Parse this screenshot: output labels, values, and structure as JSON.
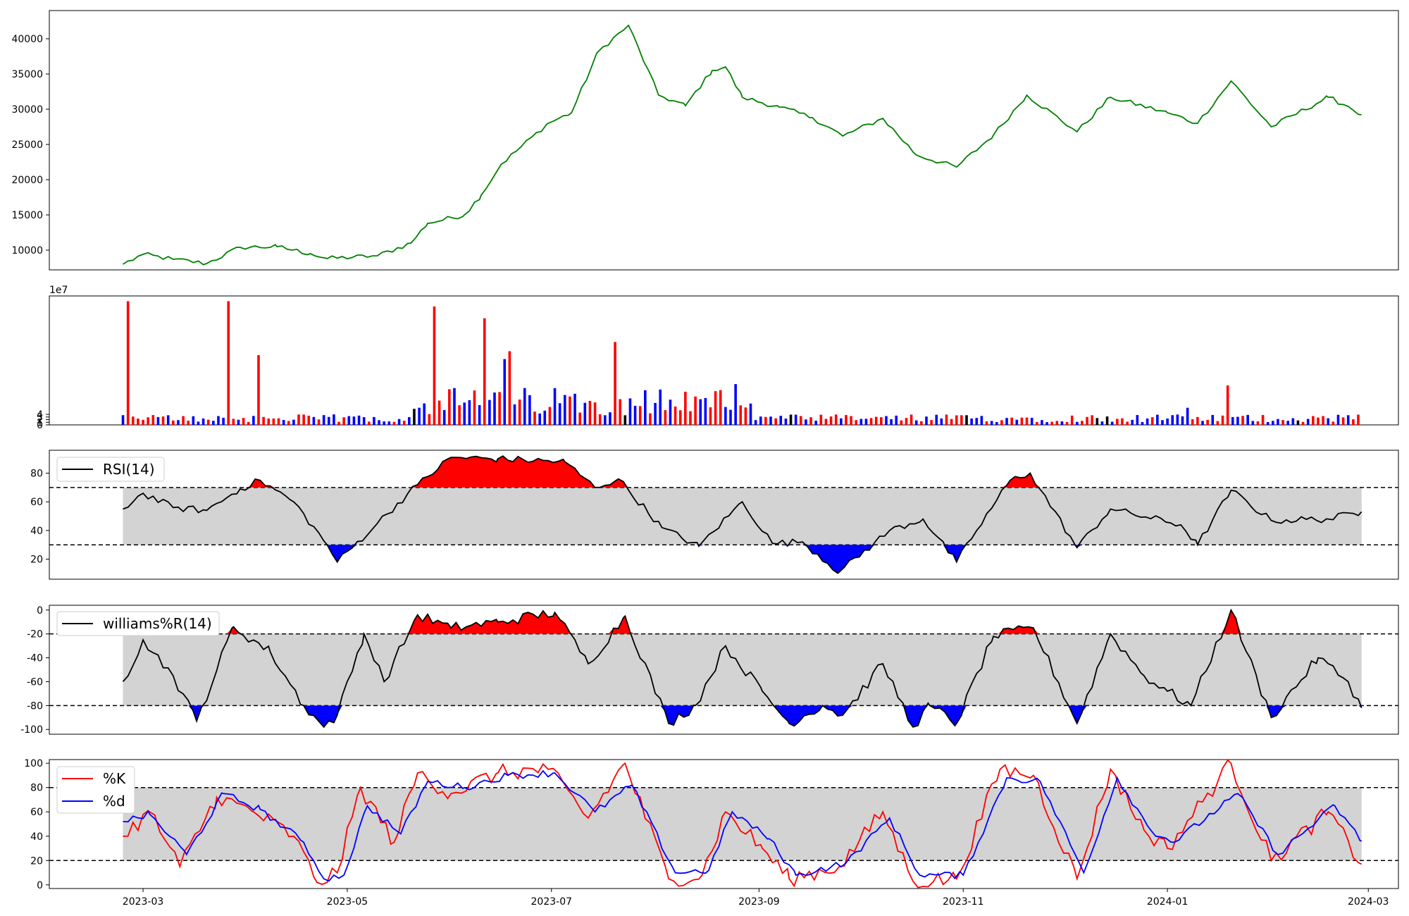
{
  "colors": {
    "price": "#008000",
    "up": "#ff0000",
    "down": "#0000ff",
    "neutral": "#000000",
    "band": "#d3d3d3",
    "k": "#ff0000",
    "d": "#0000ff",
    "line": "#000000"
  },
  "chart_data": [
    {
      "type": "line",
      "panel": "price",
      "x_range": [
        "2023-02-01",
        "2024-03-10"
      ],
      "ylim": [
        7200,
        44000
      ],
      "y_ticks": [
        10000,
        15000,
        20000,
        25000,
        30000,
        35000,
        40000
      ],
      "anchors": [
        [
          "2023-02-23",
          8000
        ],
        [
          "2023-03-01",
          9400
        ],
        [
          "2023-03-10",
          8700
        ],
        [
          "2023-03-20",
          8100
        ],
        [
          "2023-03-30",
          10400
        ],
        [
          "2023-04-10",
          10500
        ],
        [
          "2023-04-20",
          9500
        ],
        [
          "2023-04-25",
          8800
        ],
        [
          "2023-05-10",
          9200
        ],
        [
          "2023-05-20",
          11000
        ],
        [
          "2023-05-25",
          13800
        ],
        [
          "2023-06-05",
          15000
        ],
        [
          "2023-06-10",
          17800
        ],
        [
          "2023-06-16",
          22200
        ],
        [
          "2023-06-30",
          28000
        ],
        [
          "2023-07-07",
          29500
        ],
        [
          "2023-07-15",
          38200
        ],
        [
          "2023-07-24",
          41900
        ],
        [
          "2023-08-02",
          32000
        ],
        [
          "2023-08-10",
          30500
        ],
        [
          "2023-08-18",
          35500
        ],
        [
          "2023-08-22",
          36000
        ],
        [
          "2023-08-27",
          31700
        ],
        [
          "2023-09-07",
          30300
        ],
        [
          "2023-09-17",
          28800
        ],
        [
          "2023-09-26",
          26200
        ],
        [
          "2023-10-08",
          28700
        ],
        [
          "2023-10-18",
          23500
        ],
        [
          "2023-10-30",
          21800
        ],
        [
          "2023-11-10",
          26300
        ],
        [
          "2023-11-20",
          32000
        ],
        [
          "2023-12-05",
          26800
        ],
        [
          "2023-12-15",
          31700
        ],
        [
          "2024-01-01",
          29500
        ],
        [
          "2024-01-10",
          28000
        ],
        [
          "2024-01-20",
          34000
        ],
        [
          "2024-02-01",
          27500
        ],
        [
          "2024-02-18",
          31700
        ],
        [
          "2024-02-24",
          30400
        ],
        [
          "2024-02-28",
          29200
        ]
      ]
    },
    {
      "type": "bar",
      "panel": "volume",
      "scale_label": "1e7",
      "ylim": [
        0,
        49
      ],
      "y_ticks": [
        0,
        1,
        2,
        3,
        4
      ],
      "spikes": [
        [
          "2023-02-26",
          47,
          "up"
        ],
        [
          "2023-03-28",
          47,
          "up"
        ],
        [
          "2023-04-05",
          26.5,
          "up"
        ],
        [
          "2023-05-28",
          45,
          "up"
        ],
        [
          "2023-06-12",
          40.5,
          "up"
        ],
        [
          "2023-06-20",
          28,
          "up"
        ],
        [
          "2023-06-18",
          25,
          "down"
        ],
        [
          "2023-07-21",
          31.5,
          "up"
        ],
        [
          "2023-08-26",
          15.5,
          "down"
        ],
        [
          "2024-01-20",
          15,
          "up"
        ],
        [
          "2024-01-08",
          6.5,
          "down"
        ]
      ]
    },
    {
      "type": "line",
      "panel": "rsi",
      "legend": "RSI(14)",
      "ylim": [
        6,
        96
      ],
      "y_ticks": [
        20,
        40,
        60,
        80
      ],
      "bands": [
        30,
        70
      ],
      "anchors": [
        [
          "2023-02-23",
          55
        ],
        [
          "2023-03-01",
          66
        ],
        [
          "2023-03-10",
          56
        ],
        [
          "2023-03-20",
          54
        ],
        [
          "2023-03-30",
          69
        ],
        [
          "2023-04-05",
          75
        ],
        [
          "2023-04-15",
          60
        ],
        [
          "2023-04-25",
          30
        ],
        [
          "2023-04-28",
          18
        ],
        [
          "2023-05-10",
          45
        ],
        [
          "2023-05-22",
          72
        ],
        [
          "2023-06-01",
          91
        ],
        [
          "2023-06-15",
          90
        ],
        [
          "2023-07-05",
          88
        ],
        [
          "2023-07-14",
          70
        ],
        [
          "2023-07-21",
          76
        ],
        [
          "2023-08-03",
          42
        ],
        [
          "2023-08-14",
          29
        ],
        [
          "2023-08-27",
          60
        ],
        [
          "2023-09-05",
          31
        ],
        [
          "2023-09-14",
          32
        ],
        [
          "2023-09-25",
          11
        ],
        [
          "2023-10-10",
          40
        ],
        [
          "2023-10-20",
          48
        ],
        [
          "2023-10-30",
          18
        ],
        [
          "2023-11-05",
          40
        ],
        [
          "2023-11-15",
          75
        ],
        [
          "2023-11-21",
          80
        ],
        [
          "2023-12-05",
          28
        ],
        [
          "2023-12-15",
          55
        ],
        [
          "2024-01-05",
          44
        ],
        [
          "2024-01-10",
          30
        ],
        [
          "2024-01-20",
          68
        ],
        [
          "2024-02-01",
          47
        ],
        [
          "2024-02-18",
          48
        ],
        [
          "2024-02-28",
          53
        ]
      ]
    },
    {
      "type": "line",
      "panel": "williams",
      "legend": "williams%R(14)",
      "ylim": [
        -104,
        4
      ],
      "y_ticks": [
        0,
        -20,
        -40,
        -60,
        -80,
        -100
      ],
      "bands": [
        -80,
        -20
      ],
      "anchors": [
        [
          "2023-02-23",
          -60
        ],
        [
          "2023-03-01",
          -25
        ],
        [
          "2023-03-10",
          -55
        ],
        [
          "2023-03-17",
          -93
        ],
        [
          "2023-03-28",
          -14
        ],
        [
          "2023-04-08",
          -35
        ],
        [
          "2023-04-18",
          -80
        ],
        [
          "2023-04-24",
          -98
        ],
        [
          "2023-04-28",
          -88
        ],
        [
          "2023-05-06",
          -20
        ],
        [
          "2023-05-12",
          -60
        ],
        [
          "2023-05-22",
          -4
        ],
        [
          "2023-06-01",
          -15
        ],
        [
          "2023-06-15",
          -10
        ],
        [
          "2023-07-02",
          -2
        ],
        [
          "2023-07-12",
          -45
        ],
        [
          "2023-07-23",
          -5
        ],
        [
          "2023-08-05",
          -95
        ],
        [
          "2023-08-13",
          -80
        ],
        [
          "2023-08-22",
          -30
        ],
        [
          "2023-09-02",
          -68
        ],
        [
          "2023-09-10",
          -95
        ],
        [
          "2023-09-20",
          -80
        ],
        [
          "2023-09-26",
          -88
        ],
        [
          "2023-10-08",
          -45
        ],
        [
          "2023-10-17",
          -98
        ],
        [
          "2023-10-22",
          -80
        ],
        [
          "2023-10-30",
          -95
        ],
        [
          "2023-11-10",
          -22
        ],
        [
          "2023-11-22",
          -15
        ],
        [
          "2023-12-05",
          -95
        ],
        [
          "2023-12-15",
          -20
        ],
        [
          "2023-12-25",
          -55
        ],
        [
          "2024-01-01",
          -68
        ],
        [
          "2024-01-08",
          -80
        ],
        [
          "2024-01-20",
          0
        ],
        [
          "2024-02-01",
          -90
        ],
        [
          "2024-02-15",
          -40
        ],
        [
          "2024-02-24",
          -60
        ],
        [
          "2024-02-28",
          -82
        ]
      ]
    },
    {
      "type": "line",
      "panel": "stochastic",
      "ylim": [
        -3,
        103
      ],
      "y_ticks": [
        0,
        20,
        40,
        60,
        80,
        100
      ],
      "bands": [
        20,
        80
      ],
      "series": [
        {
          "name": "%K",
          "anchors": [
            [
              "2023-02-23",
              40
            ],
            [
              "2023-03-03",
              60
            ],
            [
              "2023-03-12",
              15
            ],
            [
              "2023-03-23",
              72
            ],
            [
              "2023-04-03",
              60
            ],
            [
              "2023-04-15",
              40
            ],
            [
              "2023-04-22",
              2
            ],
            [
              "2023-04-28",
              10
            ],
            [
              "2023-05-05",
              80
            ],
            [
              "2023-05-15",
              35
            ],
            [
              "2023-05-22",
              92
            ],
            [
              "2023-06-01",
              75
            ],
            [
              "2023-06-15",
              92
            ],
            [
              "2023-06-30",
              95
            ],
            [
              "2023-07-12",
              55
            ],
            [
              "2023-07-23",
              100
            ],
            [
              "2023-08-05",
              5
            ],
            [
              "2023-08-15",
              8
            ],
            [
              "2023-08-22",
              60
            ],
            [
              "2023-09-02",
              30
            ],
            [
              "2023-09-10",
              5
            ],
            [
              "2023-09-25",
              15
            ],
            [
              "2023-10-08",
              60
            ],
            [
              "2023-10-17",
              3
            ],
            [
              "2023-10-30",
              5
            ],
            [
              "2023-11-12",
              95
            ],
            [
              "2023-11-22",
              90
            ],
            [
              "2023-12-05",
              5
            ],
            [
              "2023-12-15",
              95
            ],
            [
              "2023-12-25",
              45
            ],
            [
              "2024-01-01",
              30
            ],
            [
              "2024-01-20",
              100
            ],
            [
              "2024-02-01",
              20
            ],
            [
              "2024-02-18",
              60
            ],
            [
              "2024-02-28",
              17
            ]
          ]
        },
        {
          "name": "%d",
          "anchors": [
            [
              "2023-02-23",
              52
            ],
            [
              "2023-03-03",
              58
            ],
            [
              "2023-03-14",
              25
            ],
            [
              "2023-03-25",
              75
            ],
            [
              "2023-04-05",
              62
            ],
            [
              "2023-04-18",
              35
            ],
            [
              "2023-04-24",
              5
            ],
            [
              "2023-04-30",
              8
            ],
            [
              "2023-05-07",
              65
            ],
            [
              "2023-05-17",
              42
            ],
            [
              "2023-05-25",
              85
            ],
            [
              "2023-06-05",
              80
            ],
            [
              "2023-06-18",
              90
            ],
            [
              "2023-07-02",
              92
            ],
            [
              "2023-07-14",
              60
            ],
            [
              "2023-07-25",
              82
            ],
            [
              "2023-08-07",
              10
            ],
            [
              "2023-08-17",
              12
            ],
            [
              "2023-08-24",
              60
            ],
            [
              "2023-09-04",
              38
            ],
            [
              "2023-09-12",
              8
            ],
            [
              "2023-09-27",
              18
            ],
            [
              "2023-10-10",
              55
            ],
            [
              "2023-10-19",
              8
            ],
            [
              "2023-11-01",
              8
            ],
            [
              "2023-11-14",
              88
            ],
            [
              "2023-11-24",
              85
            ],
            [
              "2023-12-07",
              10
            ],
            [
              "2023-12-17",
              88
            ],
            [
              "2023-12-27",
              45
            ],
            [
              "2024-01-03",
              35
            ],
            [
              "2024-01-22",
              75
            ],
            [
              "2024-02-03",
              25
            ],
            [
              "2024-02-20",
              65
            ],
            [
              "2024-02-28",
              36
            ]
          ]
        }
      ]
    }
  ],
  "x_axis": {
    "ticks": [
      {
        "date": "2023-03-01",
        "label": "2023-03"
      },
      {
        "date": "2023-05-01",
        "label": "2023-05"
      },
      {
        "date": "2023-07-01",
        "label": "2023-07"
      },
      {
        "date": "2023-09-01",
        "label": "2023-09"
      },
      {
        "date": "2023-11-01",
        "label": "2023-11"
      },
      {
        "date": "2024-01-01",
        "label": "2024-01"
      },
      {
        "date": "2024-03-01",
        "label": "2024-03"
      }
    ]
  }
}
